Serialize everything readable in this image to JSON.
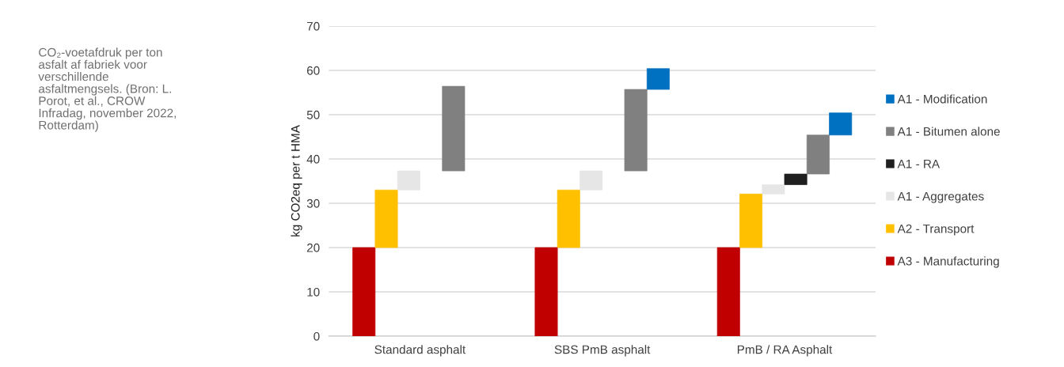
{
  "chart_data": {
    "type": "bar",
    "ylabel": "kg CO2eq per t HMA",
    "categories": [
      "Standard asphalt",
      "SBS PmB asphalt",
      "PmB / RA Asphalt"
    ],
    "series": [
      {
        "name": "A3 - Manufacturing",
        "color": "#c00000",
        "values": [
          20,
          20,
          20
        ],
        "base": [
          0,
          0,
          0
        ]
      },
      {
        "name": "A2 - Transport",
        "color": "#ffc000",
        "values": [
          13.0,
          13.0,
          12.1
        ],
        "base": [
          20,
          20,
          20
        ]
      },
      {
        "name": "A1 - Aggregates",
        "color": "#e6e6e6",
        "values": [
          4.3,
          4.3,
          2.1
        ],
        "base": [
          33.0,
          33.0,
          32.1
        ]
      },
      {
        "name": "A1 - RA",
        "color": "#1f1f1f",
        "values": [
          null,
          null,
          2.4
        ],
        "base": [
          null,
          null,
          34.2
        ]
      },
      {
        "name": "A1 - Bitumen alone",
        "color": "#808080",
        "values": [
          19.1,
          18.4,
          8.8
        ],
        "base": [
          37.3,
          37.3,
          36.6
        ]
      },
      {
        "name": "A1 - Modification",
        "color": "#0070c0",
        "values": [
          null,
          4.7,
          5.0
        ],
        "base": [
          null,
          55.7,
          45.4
        ]
      }
    ],
    "ylim": [
      0,
      70
    ],
    "yticks": [
      0,
      10,
      20,
      30,
      40,
      50,
      60,
      70
    ],
    "grid": "y",
    "legend": "right",
    "annotations": [
      "CO₂-voetafdruk per ton asfalt af fabriek voor verschillende asfaltmengsels. (Bron: L. Porot, et al., CROW Infradag, november 2022, Rotterdam)"
    ]
  }
}
